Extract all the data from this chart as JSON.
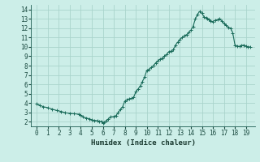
{
  "title": "",
  "xlabel": "Humidex (Indice chaleur)",
  "background_color": "#cceee8",
  "grid_color": "#aad4cc",
  "line_color": "#1a6b5a",
  "marker_color": "#1a6b5a",
  "xlim": [
    -0.5,
    19.8
  ],
  "ylim": [
    1.5,
    14.5
  ],
  "xticks": [
    0,
    1,
    2,
    3,
    4,
    5,
    6,
    7,
    8,
    9,
    10,
    11,
    12,
    13,
    14,
    15,
    16,
    17,
    18,
    19
  ],
  "yticks": [
    2,
    3,
    4,
    5,
    6,
    7,
    8,
    9,
    10,
    11,
    12,
    13,
    14
  ],
  "x": [
    0,
    0.3,
    0.6,
    1.0,
    1.4,
    1.8,
    2.2,
    2.6,
    3.0,
    3.4,
    3.8,
    4.0,
    4.2,
    4.5,
    4.8,
    5.0,
    5.2,
    5.5,
    5.7,
    5.9,
    6.0,
    6.1,
    6.3,
    6.5,
    6.7,
    7.0,
    7.2,
    7.4,
    7.6,
    7.8,
    8.0,
    8.2,
    8.4,
    8.6,
    8.8,
    9.0,
    9.2,
    9.4,
    9.6,
    9.8,
    10.0,
    10.2,
    10.4,
    10.6,
    10.8,
    11.0,
    11.2,
    11.4,
    11.6,
    11.8,
    12.0,
    12.2,
    12.4,
    12.6,
    12.8,
    13.0,
    13.2,
    13.4,
    13.6,
    13.8,
    14.0,
    14.2,
    14.4,
    14.6,
    14.8,
    15.0,
    15.2,
    15.4,
    15.5,
    15.6,
    15.8,
    16.0,
    16.2,
    16.4,
    16.6,
    16.8,
    17.0,
    17.2,
    17.4,
    17.6,
    17.8,
    18.0,
    18.2,
    18.4,
    18.6,
    18.8,
    19.0,
    19.2,
    19.4
  ],
  "y": [
    3.9,
    3.75,
    3.6,
    3.5,
    3.35,
    3.2,
    3.1,
    2.95,
    2.9,
    2.85,
    2.8,
    2.7,
    2.5,
    2.4,
    2.3,
    2.2,
    2.15,
    2.1,
    2.0,
    2.05,
    1.85,
    1.9,
    2.1,
    2.3,
    2.5,
    2.55,
    2.65,
    3.0,
    3.3,
    3.6,
    4.2,
    4.35,
    4.45,
    4.5,
    4.6,
    5.2,
    5.5,
    5.8,
    6.3,
    6.8,
    7.5,
    7.6,
    7.8,
    8.0,
    8.3,
    8.5,
    8.7,
    8.8,
    9.0,
    9.2,
    9.5,
    9.55,
    9.7,
    10.2,
    10.5,
    10.8,
    11.0,
    11.2,
    11.3,
    11.55,
    11.8,
    12.2,
    13.0,
    13.5,
    13.8,
    13.6,
    13.2,
    13.1,
    13.0,
    12.9,
    12.8,
    12.7,
    12.85,
    12.9,
    13.0,
    12.8,
    12.5,
    12.3,
    12.1,
    12.0,
    11.5,
    10.2,
    10.1,
    10.05,
    10.15,
    10.2,
    10.1,
    10.0,
    10.0
  ]
}
